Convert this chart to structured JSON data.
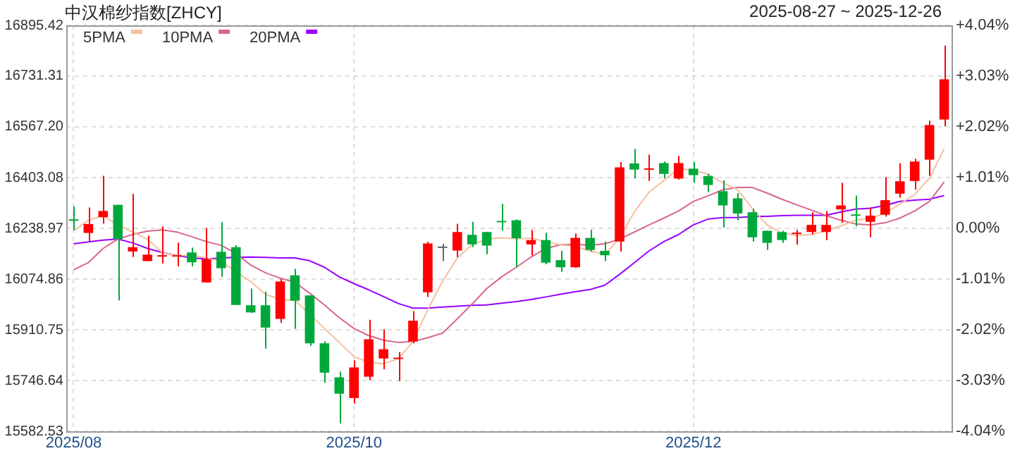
{
  "chart_data": {
    "type": "candlestick",
    "title": "中汉棉纱指数[ZHCY]",
    "subtitle": "2025-08-27 ~ 2025-12-26",
    "categories": [
      "2025/08",
      null,
      null,
      null,
      null,
      null,
      null,
      null,
      null,
      null,
      null,
      null,
      null,
      null,
      null,
      null,
      null,
      null,
      null,
      "2025/10",
      null,
      null,
      null,
      null,
      null,
      null,
      null,
      null,
      null,
      null,
      null,
      null,
      null,
      null,
      null,
      null,
      null,
      null,
      null,
      null,
      null,
      null,
      "2025/12",
      null,
      null,
      null,
      null,
      null,
      null,
      null,
      null,
      null,
      null,
      null,
      null,
      null,
      null,
      null,
      null,
      null
    ],
    "ohlc": [
      [
        16268,
        16310,
        16234,
        16266
      ],
      [
        16224,
        16306,
        16196,
        16253
      ],
      [
        16275,
        16409,
        16254,
        16295
      ],
      [
        16315,
        16315,
        16006,
        16204
      ],
      [
        16164,
        16350,
        16146,
        16178
      ],
      [
        16133,
        16215,
        16133,
        16154
      ],
      [
        16149,
        16245,
        16125,
        16152
      ],
      [
        16149,
        16192,
        16116,
        16152
      ],
      [
        16161,
        16177,
        16116,
        16129
      ],
      [
        16064,
        16240,
        16064,
        16139
      ],
      [
        16163,
        16259,
        16082,
        16110
      ],
      [
        16178,
        16184,
        15991,
        15991
      ],
      [
        15990,
        16044,
        15965,
        15967
      ],
      [
        15990,
        16034,
        15850,
        15918
      ],
      [
        15946,
        16075,
        15933,
        16067
      ],
      [
        16087,
        16108,
        15914,
        16005
      ],
      [
        16022,
        16022,
        15859,
        15867
      ],
      [
        15867,
        15873,
        15740,
        15772
      ],
      [
        15757,
        15775,
        15608,
        15704
      ],
      [
        15690,
        15812,
        15672,
        15789
      ],
      [
        15759,
        15943,
        15748,
        15880
      ],
      [
        15818,
        15912,
        15783,
        15848
      ],
      [
        15818,
        15839,
        15745,
        15821
      ],
      [
        15873,
        15971,
        15867,
        15940
      ],
      [
        16032,
        16195,
        16017,
        16190
      ],
      [
        16180,
        16189,
        16133,
        16180
      ],
      [
        16167,
        16254,
        16146,
        16227
      ],
      [
        16218,
        16260,
        16178,
        16187
      ],
      [
        16227,
        16227,
        16155,
        16183
      ],
      [
        16263,
        16318,
        16231,
        16260
      ],
      [
        16265,
        16268,
        16113,
        16207
      ],
      [
        16187,
        16234,
        16151,
        16201
      ],
      [
        16201,
        16225,
        16123,
        16128
      ],
      [
        16136,
        16166,
        16098,
        16113
      ],
      [
        16113,
        16222,
        16111,
        16208
      ],
      [
        16208,
        16234,
        16164,
        16169
      ],
      [
        16166,
        16196,
        16133,
        16152
      ],
      [
        16196,
        16453,
        16164,
        16436
      ],
      [
        16449,
        16496,
        16401,
        16429
      ],
      [
        16430,
        16477,
        16392,
        16433
      ],
      [
        16450,
        16455,
        16401,
        16415
      ],
      [
        16400,
        16473,
        16397,
        16450
      ],
      [
        16432,
        16453,
        16386,
        16411
      ],
      [
        16408,
        16415,
        16356,
        16379
      ],
      [
        16359,
        16394,
        16242,
        16313
      ],
      [
        16336,
        16353,
        16265,
        16287
      ],
      [
        16291,
        16303,
        16196,
        16210
      ],
      [
        16231,
        16231,
        16169,
        16192
      ],
      [
        16227,
        16231,
        16192,
        16201
      ],
      [
        16222,
        16234,
        16186,
        16225
      ],
      [
        16227,
        16291,
        16219,
        16250
      ],
      [
        16227,
        16295,
        16201,
        16250
      ],
      [
        16300,
        16386,
        16257,
        16313
      ],
      [
        16284,
        16345,
        16245,
        16280
      ],
      [
        16260,
        16306,
        16210,
        16280
      ],
      [
        16283,
        16405,
        16277,
        16330
      ],
      [
        16351,
        16449,
        16338,
        16391
      ],
      [
        16392,
        16464,
        16364,
        16455
      ],
      [
        16461,
        16587,
        16409,
        16573
      ],
      [
        16591,
        16830,
        16569,
        16721
      ]
    ],
    "colors": [
      "#00a83c",
      "#ff0000",
      "#ff0000",
      "#00a83c",
      "#ff0000",
      "#ff0000",
      "#ff0000",
      "#ff0000",
      "#00a83c",
      "#ff0000",
      "#00a83c",
      "#00a83c",
      "#00a83c",
      "#00a83c",
      "#ff0000",
      "#00a83c",
      "#00a83c",
      "#00a83c",
      "#00a83c",
      "#ff0000",
      "#ff0000",
      "#ff0000",
      "#ff0000",
      "#ff0000",
      "#ff0000",
      "#666666",
      "#ff0000",
      "#00a83c",
      "#00a83c",
      "#00a83c",
      "#00a83c",
      "#ff0000",
      "#00a83c",
      "#00a83c",
      "#ff0000",
      "#00a83c",
      "#00a83c",
      "#ff0000",
      "#00a83c",
      "#ff0000",
      "#00a83c",
      "#ff0000",
      "#00a83c",
      "#00a83c",
      "#00a83c",
      "#00a83c",
      "#00a83c",
      "#00a83c",
      "#00a83c",
      "#ff0000",
      "#ff0000",
      "#ff0000",
      "#ff0000",
      "#00a83c",
      "#ff0000",
      "#ff0000",
      "#ff0000",
      "#ff0000",
      "#ff0000",
      "#ff0000"
    ],
    "series": [
      {
        "name": "5PMA",
        "type": "line",
        "color": "#f5bfa0",
        "values": [
          16231,
          16265,
          16280,
          16250,
          16227,
          16204,
          16161,
          16151,
          16151,
          16143,
          16133,
          16098,
          16067,
          16026,
          16009,
          16006,
          15961,
          15915,
          15870,
          15824,
          15806,
          15801,
          15817,
          15873,
          15976,
          16067,
          16143,
          16186,
          16204,
          16208,
          16205,
          16207,
          16196,
          16186,
          16181,
          16166,
          16154,
          16207,
          16292,
          16356,
          16394,
          16432,
          16427,
          16414,
          16386,
          16364,
          16303,
          16250,
          16224,
          16216,
          16219,
          16231,
          16247,
          16265,
          16272,
          16287,
          16318,
          16348,
          16401,
          16496
        ]
      },
      {
        "name": "10PMA",
        "type": "line",
        "color": "#d9668c",
        "values": [
          16105,
          16128,
          16174,
          16204,
          16219,
          16230,
          16234,
          16227,
          16212,
          16196,
          16184,
          16158,
          16120,
          16095,
          16078,
          16064,
          16029,
          15991,
          15950,
          15915,
          15892,
          15877,
          15870,
          15873,
          15885,
          15900,
          15946,
          15994,
          16044,
          16082,
          16113,
          16146,
          16174,
          16186,
          16187,
          16184,
          16189,
          16204,
          16227,
          16250,
          16272,
          16295,
          16326,
          16344,
          16364,
          16371,
          16371,
          16353,
          16333,
          16315,
          16298,
          16280,
          16265,
          16253,
          16250,
          16257,
          16272,
          16295,
          16326,
          16389
        ]
      },
      {
        "name": "20PMA",
        "type": "line",
        "color": "#9900ff",
        "values": [
          16189,
          16195,
          16201,
          16204,
          16192,
          16174,
          16161,
          16151,
          16143,
          16140,
          16143,
          16145,
          16146,
          16145,
          16143,
          16143,
          16134,
          16113,
          16082,
          16060,
          16040,
          16018,
          15996,
          15981,
          15981,
          15984,
          15987,
          15990,
          15991,
          15997,
          16002,
          16009,
          16017,
          16026,
          16034,
          16041,
          16055,
          16090,
          16128,
          16166,
          16196,
          16219,
          16250,
          16269,
          16274,
          16274,
          16277,
          16278,
          16280,
          16281,
          16281,
          16281,
          16292,
          16301,
          16304,
          16313,
          16326,
          16330,
          16333,
          16345
        ]
      }
    ],
    "ylim": [
      15582.53,
      16895.42
    ],
    "yticks": [
      15582.53,
      15746.64,
      15910.75,
      16074.86,
      16238.97,
      16403.08,
      {
        "value": 16567.2,
        "label": "16567.20"
      },
      16731.31,
      16895.42
    ],
    "y2lim": [
      -4.04,
      4.04
    ],
    "y2ticks": [
      {
        "value": -4.04,
        "label": "-4.04%"
      },
      {
        "value": -3.03,
        "label": "-3.03%"
      },
      {
        "value": -2.02,
        "label": "-2.02%"
      },
      {
        "value": -1.01,
        "label": "-1.01%"
      },
      {
        "value": 0,
        "label": "0.00%"
      },
      {
        "value": 1.01,
        "label": "+1.01%"
      },
      {
        "value": 2.02,
        "label": "+2.02%"
      },
      {
        "value": 3.03,
        "label": "+3.03%"
      },
      {
        "value": 4.04,
        "label": "+4.04%"
      }
    ],
    "grid": true,
    "legend": "top left",
    "marker": "none",
    "line_style": "solid"
  }
}
